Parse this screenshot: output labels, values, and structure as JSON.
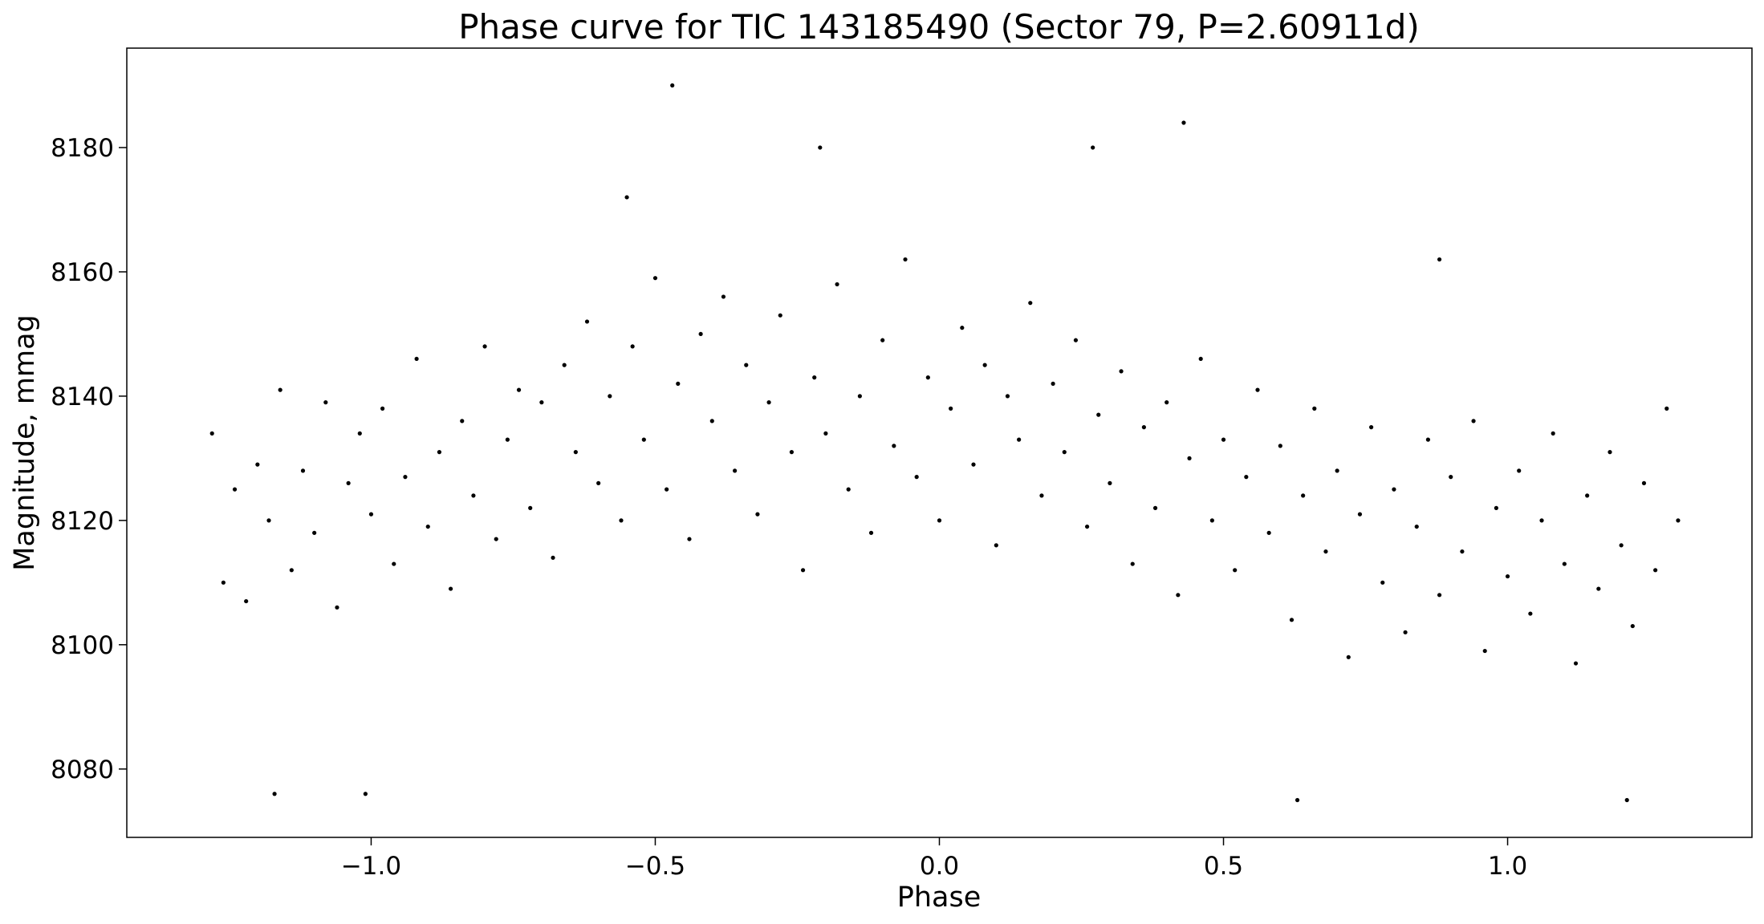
{
  "chart_data": {
    "type": "scatter",
    "title": "Phase curve for TIC 143185490 (Sector 79, P=2.60911d)",
    "xlabel": "Phase",
    "ylabel": "Magnitude, mmag",
    "color": "#000000",
    "xlim": [
      -1.43,
      1.43
    ],
    "ylim": [
      8069,
      8196
    ],
    "xticks": [
      {
        "value": -1,
        "label": "−1.0"
      },
      {
        "value": -0.5,
        "label": "−0.5"
      },
      {
        "value": 0,
        "label": "0.0"
      },
      {
        "value": 0.5,
        "label": "0.5"
      },
      {
        "value": 1,
        "label": "1.0"
      }
    ],
    "yticks": [
      8080,
      8100,
      8120,
      8140,
      8160,
      8180
    ],
    "x": [
      -1.28,
      -1.26,
      -1.24,
      -1.22,
      -1.2,
      -1.18,
      -1.16,
      -1.14,
      -1.12,
      -1.1,
      -1.08,
      -1.06,
      -1.04,
      -1.02,
      -1.0,
      -0.98,
      -0.96,
      -0.94,
      -0.92,
      -0.9,
      -0.88,
      -0.86,
      -0.84,
      -0.82,
      -0.8,
      -0.78,
      -0.76,
      -0.74,
      -0.72,
      -0.7,
      -0.68,
      -0.66,
      -0.64,
      -0.62,
      -0.6,
      -0.58,
      -0.56,
      -0.54,
      -0.52,
      -0.5,
      -0.48,
      -0.46,
      -0.44,
      -0.42,
      -0.4,
      -0.38,
      -0.36,
      -0.34,
      -0.32,
      -0.3,
      -0.28,
      -0.26,
      -0.24,
      -0.22,
      -0.2,
      -0.18,
      -0.16,
      -0.14,
      -0.12,
      -0.1,
      -0.08,
      -0.06,
      -0.04,
      -0.02,
      0.0,
      0.02,
      0.04,
      0.06,
      0.08,
      0.1,
      0.12,
      0.14,
      0.16,
      0.18,
      0.2,
      0.22,
      0.24,
      0.26,
      0.28,
      0.3,
      0.32,
      0.34,
      0.36,
      0.38,
      0.4,
      0.42,
      0.44,
      0.46,
      0.48,
      0.5,
      0.52,
      0.54,
      0.56,
      0.58,
      0.6,
      0.62,
      0.64,
      0.66,
      0.68,
      0.7,
      0.72,
      0.74,
      0.76,
      0.78,
      0.8,
      0.82,
      0.84,
      0.86,
      0.88,
      0.9,
      0.92,
      0.94,
      0.96,
      0.98,
      1.0,
      1.02,
      1.04,
      1.06,
      1.08,
      1.1,
      1.12,
      1.14,
      1.16,
      1.18,
      1.2,
      1.22,
      1.24,
      1.26,
      1.28,
      1.3,
      -0.47,
      0.43,
      -1.17,
      -1.01,
      0.63,
      1.21,
      -0.21,
      0.27,
      -0.55,
      0.88
    ],
    "values": [
      8134,
      8110,
      8125,
      8107,
      8129,
      8120,
      8141,
      8112,
      8128,
      8118,
      8139,
      8106,
      8126,
      8134,
      8121,
      8138,
      8113,
      8127,
      8146,
      8119,
      8131,
      8109,
      8136,
      8124,
      8148,
      8117,
      8133,
      8141,
      8122,
      8139,
      8114,
      8145,
      8131,
      8152,
      8126,
      8140,
      8120,
      8148,
      8133,
      8159,
      8125,
      8142,
      8117,
      8150,
      8136,
      8156,
      8128,
      8145,
      8121,
      8139,
      8153,
      8131,
      8112,
      8143,
      8134,
      8158,
      8125,
      8140,
      8118,
      8149,
      8132,
      8162,
      8127,
      8143,
      8120,
      8138,
      8151,
      8129,
      8145,
      8116,
      8140,
      8133,
      8155,
      8124,
      8142,
      8131,
      8149,
      8119,
      8137,
      8126,
      8144,
      8113,
      8135,
      8122,
      8139,
      8108,
      8130,
      8146,
      8120,
      8133,
      8112,
      8127,
      8141,
      8118,
      8132,
      8104,
      8124,
      8138,
      8115,
      8128,
      8098,
      8121,
      8135,
      8110,
      8125,
      8102,
      8119,
      8133,
      8108,
      8127,
      8115,
      8136,
      8099,
      8122,
      8111,
      8128,
      8105,
      8120,
      8134,
      8113,
      8097,
      8124,
      8109,
      8131,
      8116,
      8103,
      8126,
      8112,
      8138,
      8120,
      8190,
      8184,
      8076,
      8076,
      8075,
      8075,
      8180,
      8180,
      8172,
      8162
    ]
  }
}
